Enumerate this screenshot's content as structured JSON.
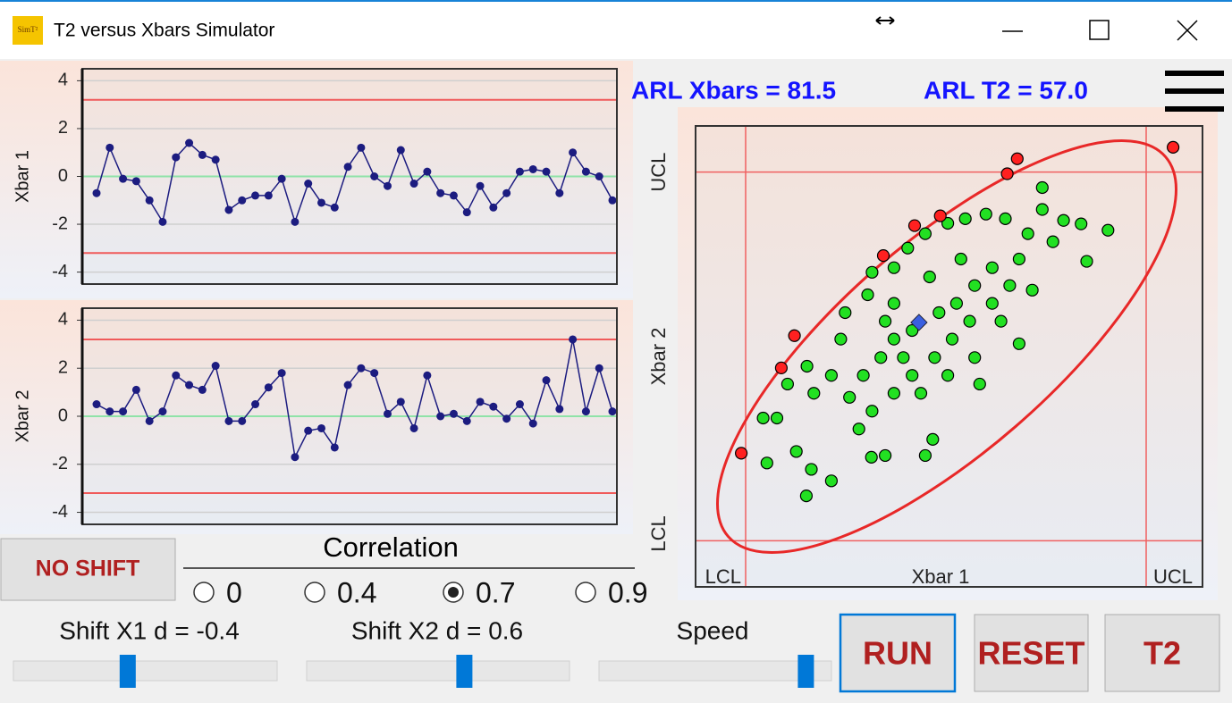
{
  "window": {
    "icon_text": "SimT²",
    "title": "T2 versus Xbars Simulator"
  },
  "arl": {
    "xbars": "ARL Xbars = 81.5",
    "t2": "ARL T2 = 57.0"
  },
  "chart_data": [
    {
      "type": "line",
      "ylabel": "Xbar 1",
      "values": [
        -0.7,
        1.2,
        -0.1,
        -0.2,
        -1.0,
        -1.9,
        0.8,
        1.4,
        0.9,
        0.7,
        -1.4,
        -1.0,
        -0.8,
        -0.8,
        -0.1,
        -1.9,
        -0.3,
        -1.1,
        -1.3,
        0.4,
        1.2,
        0.0,
        -0.4,
        1.1,
        -0.3,
        0.2,
        -0.7,
        -0.8,
        -1.5,
        -0.4,
        -1.3,
        -0.7,
        0.2,
        0.3,
        0.2,
        -0.7,
        1.0,
        0.2,
        0.0,
        -1.0
      ],
      "ylim": [
        -4.5,
        4.5
      ],
      "yticks": [
        -4,
        -2,
        0,
        2,
        4
      ],
      "grid": true,
      "ucl": 3.2,
      "lcl": -3.2,
      "center": 0,
      "color": "#1c1c80",
      "limit_color": "#f05a5a",
      "center_color": "#8fe3a8"
    },
    {
      "type": "line",
      "ylabel": "Xbar 2",
      "values": [
        0.5,
        0.2,
        0.2,
        1.1,
        -0.2,
        0.2,
        1.7,
        1.3,
        1.1,
        2.1,
        -0.2,
        -0.2,
        0.5,
        1.2,
        1.8,
        -1.7,
        -0.6,
        -0.5,
        -1.3,
        1.3,
        2.0,
        1.8,
        0.1,
        0.6,
        -0.5,
        1.7,
        0.0,
        0.1,
        -0.2,
        0.6,
        0.4,
        -0.1,
        0.5,
        -0.3,
        1.5,
        0.3,
        3.2,
        0.2,
        2.0,
        0.2
      ],
      "ylim": [
        -4.5,
        4.5
      ],
      "yticks": [
        -4,
        -2,
        0,
        2,
        4
      ],
      "grid": true,
      "ucl": 3.2,
      "lcl": -3.2,
      "center": 0,
      "color": "#1c1c80",
      "limit_color": "#f05a5a",
      "center_color": "#8fe3a8"
    },
    {
      "type": "scatter",
      "xlabel": "Xbar 1",
      "ylabel": "Xbar 2",
      "xlim": [
        -4,
        4.1
      ],
      "ylim": [
        -4,
        4
      ],
      "xticks": [
        {
          "value": -3.2,
          "label": "LCL"
        },
        {
          "value": 3.2,
          "label": "UCL"
        }
      ],
      "yticks": [
        {
          "value": -3.2,
          "label": "LCL"
        },
        {
          "value": 3.2,
          "label": "UCL"
        }
      ],
      "limit_color": "#f06060",
      "ellipse_color": "#e82828",
      "series": [
        {
          "color": "#22e022",
          "x": [
            1.54,
            1.54,
            1.88,
            2.16,
            2.59,
            2.25,
            1.71,
            1.38,
            1.17,
            0.54,
            -0.21,
            -0.33,
            -0.97,
            -1.19,
            -1.83,
            -2.23,
            -2.15,
            -2.39,
            -2.86,
            -2.92,
            -2.7,
            -2.53,
            -2.22,
            -2.11,
            -1.83,
            -1.61,
            -1.25,
            -1.18,
            -0.83,
            -0.61,
            -0.33,
            0.03,
            0.31,
            0.64,
            0.95,
            1.31,
            1.17,
            0.74,
            0.46,
            0.17,
            -0.11,
            -0.54,
            -0.83,
            -1.04,
            -1.32,
            -1.54,
            -1.18,
            -0.83,
            -0.54,
            -0.18,
            0.1,
            0.38,
            0.74,
            1.02,
            0.88,
            0.46,
            0.03,
            -0.4,
            -1.39,
            -1.68,
            -0.83,
            -0.26,
            0.24,
            -0.68,
            -0.97
          ],
          "y": [
            2.93,
            2.55,
            2.36,
            2.3,
            2.19,
            1.65,
            1.99,
            1.15,
            0.22,
            -0.48,
            -1.44,
            -1.72,
            -1.72,
            -1.75,
            -2.16,
            -2.42,
            -1.96,
            -1.65,
            -1.85,
            -1.07,
            -1.07,
            -0.48,
            -0.17,
            -0.64,
            -0.33,
            0.76,
            1.07,
            1.46,
            1.54,
            1.88,
            2.13,
            2.31,
            2.39,
            2.47,
            2.39,
            2.13,
            1.69,
            1.54,
            1.23,
            0.92,
            0.76,
            0.45,
            0.3,
            -0.02,
            -0.33,
            -0.71,
            -0.95,
            -0.64,
            -0.33,
            -0.02,
            0.3,
            0.61,
            0.92,
            1.23,
            0.61,
            -0.02,
            -0.33,
            -0.64,
            -1.26,
            0.3,
            0.92,
            1.38,
            1.69,
            -0.02,
            0.61
          ]
        },
        {
          "color": "#ff2020",
          "x": [
            3.63,
            1.14,
            0.98,
            -0.09,
            -0.5,
            -1.0,
            -2.42,
            -2.63,
            -3.27
          ],
          "y": [
            3.63,
            3.43,
            3.17,
            2.44,
            2.27,
            1.75,
            0.36,
            -0.2,
            -1.68
          ]
        },
        {
          "color": "#3a5fe0",
          "marker": "diamond",
          "x": [
            -0.43
          ],
          "y": [
            0.59
          ]
        }
      ]
    }
  ],
  "controls": {
    "no_shift": "NO SHIFT",
    "correlation": {
      "label": "Correlation",
      "options": [
        "0",
        "0.4",
        "0.7",
        "0.9"
      ],
      "selected": 2
    },
    "sliders": [
      {
        "label": "Shift X1 d = -0.4",
        "value": -0.4,
        "min": -3,
        "max": 3
      },
      {
        "label": "Shift X2 d = 0.6",
        "value": 0.6,
        "min": -3,
        "max": 3
      },
      {
        "label": "Speed",
        "value": 0.89,
        "min": 0,
        "max": 1
      }
    ],
    "buttons": [
      "RUN",
      "RESET",
      "T2"
    ]
  }
}
